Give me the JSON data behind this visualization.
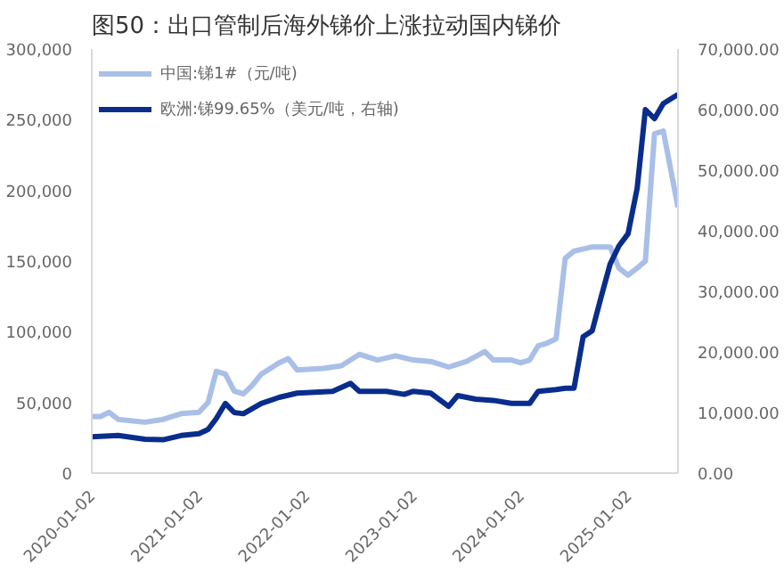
{
  "chart_data": {
    "type": "line",
    "title": "图50：出口管制后海外锑价上涨拉动国内锑价",
    "xlim": [
      "2020-01-02",
      "2025-06-20"
    ],
    "xticks": [
      "2020-01-02",
      "2021-01-02",
      "2022-01-02",
      "2023-01-02",
      "2024-01-02",
      "2025-01-02"
    ],
    "ylim": [
      0,
      300000
    ],
    "yticks": [
      {
        "value": 0,
        "label": "0"
      },
      {
        "value": 50000,
        "label": "50,000"
      },
      {
        "value": 100000,
        "label": "100,000"
      },
      {
        "value": 150000,
        "label": "150,000"
      },
      {
        "value": 200000,
        "label": "200,000"
      },
      {
        "value": 250000,
        "label": "250,000"
      },
      {
        "value": 300000,
        "label": "300,000"
      }
    ],
    "y2lim": [
      0,
      70000
    ],
    "y2ticks": [
      {
        "value": 0,
        "label": "0.00"
      },
      {
        "value": 10000,
        "label": "10,000.00"
      },
      {
        "value": 20000,
        "label": "20,000.00"
      },
      {
        "value": 30000,
        "label": "30,000.00"
      },
      {
        "value": 40000,
        "label": "40,000.00"
      },
      {
        "value": 50000,
        "label": "50,000.00"
      },
      {
        "value": 60000,
        "label": "60,000.00"
      },
      {
        "value": 70000,
        "label": "70,000.00"
      }
    ],
    "grid": false,
    "legend": "top left",
    "line_style": "solid",
    "series": [
      {
        "name": "中国:锑1#（元/吨)",
        "color": "#a9bfe8",
        "x": [
          "2020-01-02",
          "2020-02",
          "2020-03",
          "2020-04",
          "2020-07",
          "2020-09",
          "2020-11",
          "2021-01",
          "2021-02",
          "2021-03",
          "2021-04",
          "2021-05",
          "2021-06",
          "2021-07",
          "2021-08",
          "2021-10",
          "2021-11",
          "2021-12",
          "2022-03",
          "2022-05",
          "2022-07",
          "2022-09",
          "2022-11",
          "2023-01",
          "2023-03",
          "2023-05",
          "2023-07",
          "2023-09",
          "2023-10",
          "2023-12",
          "2024-01",
          "2024-02",
          "2024-03",
          "2024-04",
          "2024-05",
          "2024-06",
          "2024-07",
          "2024-09",
          "2024-11",
          "2024-12",
          "2025-01",
          "2025-02",
          "2025-03",
          "2025-04",
          "2025-05",
          "2025-06-20"
        ],
        "values": [
          40000,
          40000,
          43000,
          38000,
          36000,
          38000,
          42000,
          43000,
          50000,
          72000,
          70000,
          58000,
          56000,
          62000,
          70000,
          78000,
          81000,
          73000,
          74000,
          76000,
          84000,
          80000,
          83000,
          80000,
          79000,
          75000,
          79000,
          86000,
          80000,
          80000,
          78000,
          80000,
          90000,
          92000,
          95000,
          152000,
          157000,
          160000,
          160000,
          145000,
          140000,
          145000,
          150000,
          240000,
          242000,
          188000
        ]
      },
      {
        "name": "欧洲:锑99.65%（美元/吨，右轴)",
        "color": "#0a2d8c",
        "axis": "y2",
        "x": [
          "2020-01-02",
          "2020-04",
          "2020-07",
          "2020-09",
          "2020-11",
          "2021-01",
          "2021-02",
          "2021-03",
          "2021-04",
          "2021-05",
          "2021-06",
          "2021-08",
          "2021-10",
          "2021-12",
          "2022-04",
          "2022-06",
          "2022-07",
          "2022-10",
          "2022-12",
          "2023-01",
          "2023-03",
          "2023-05",
          "2023-06",
          "2023-08",
          "2023-10",
          "2023-12",
          "2024-02",
          "2024-03",
          "2024-05",
          "2024-06",
          "2024-07",
          "2024-08",
          "2024-09",
          "2024-10",
          "2024-11",
          "2024-12",
          "2025-01",
          "2025-02",
          "2025-03",
          "2025-04",
          "2025-05",
          "2025-06-20"
        ],
        "values": [
          6000,
          6200,
          5600,
          5500,
          6200,
          6500,
          7200,
          9000,
          11500,
          10000,
          9800,
          11500,
          12500,
          13200,
          13500,
          14800,
          13500,
          13500,
          13000,
          13500,
          13200,
          11000,
          12800,
          12200,
          12000,
          11500,
          11500,
          13500,
          13800,
          14000,
          14000,
          22500,
          23500,
          29000,
          34500,
          37500,
          39500,
          47000,
          60000,
          58500,
          61000,
          62500
        ]
      }
    ]
  }
}
